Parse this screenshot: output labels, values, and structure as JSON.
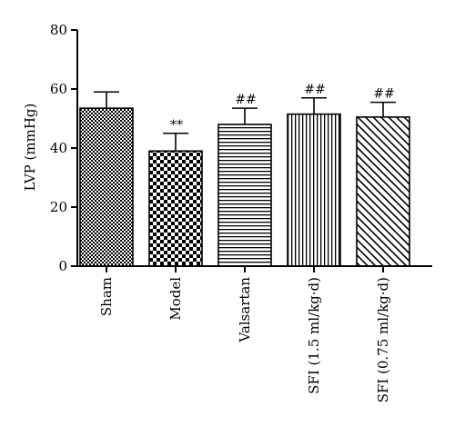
{
  "chart_data": {
    "type": "bar",
    "title": "",
    "xlabel": "",
    "ylabel": "LVP (mmHg)",
    "ylim": [
      0,
      80
    ],
    "yticks": [
      0,
      20,
      40,
      60,
      80
    ],
    "grid": false,
    "categories": [
      "Sham",
      "Model",
      "Valsartan",
      "SFI (1.5 ml/kg·d)",
      "SFI (0.75 ml/kg·d)"
    ],
    "values": [
      53.5,
      39,
      48,
      51.5,
      50.5
    ],
    "error_upper": [
      5.5,
      6,
      5.5,
      5.5,
      5
    ],
    "annotations": [
      "",
      "**",
      "##",
      "##",
      "##"
    ],
    "patterns": [
      "small-checker",
      "large-checker",
      "horizontal-lines",
      "vertical-lines",
      "diagonal-lines"
    ]
  }
}
